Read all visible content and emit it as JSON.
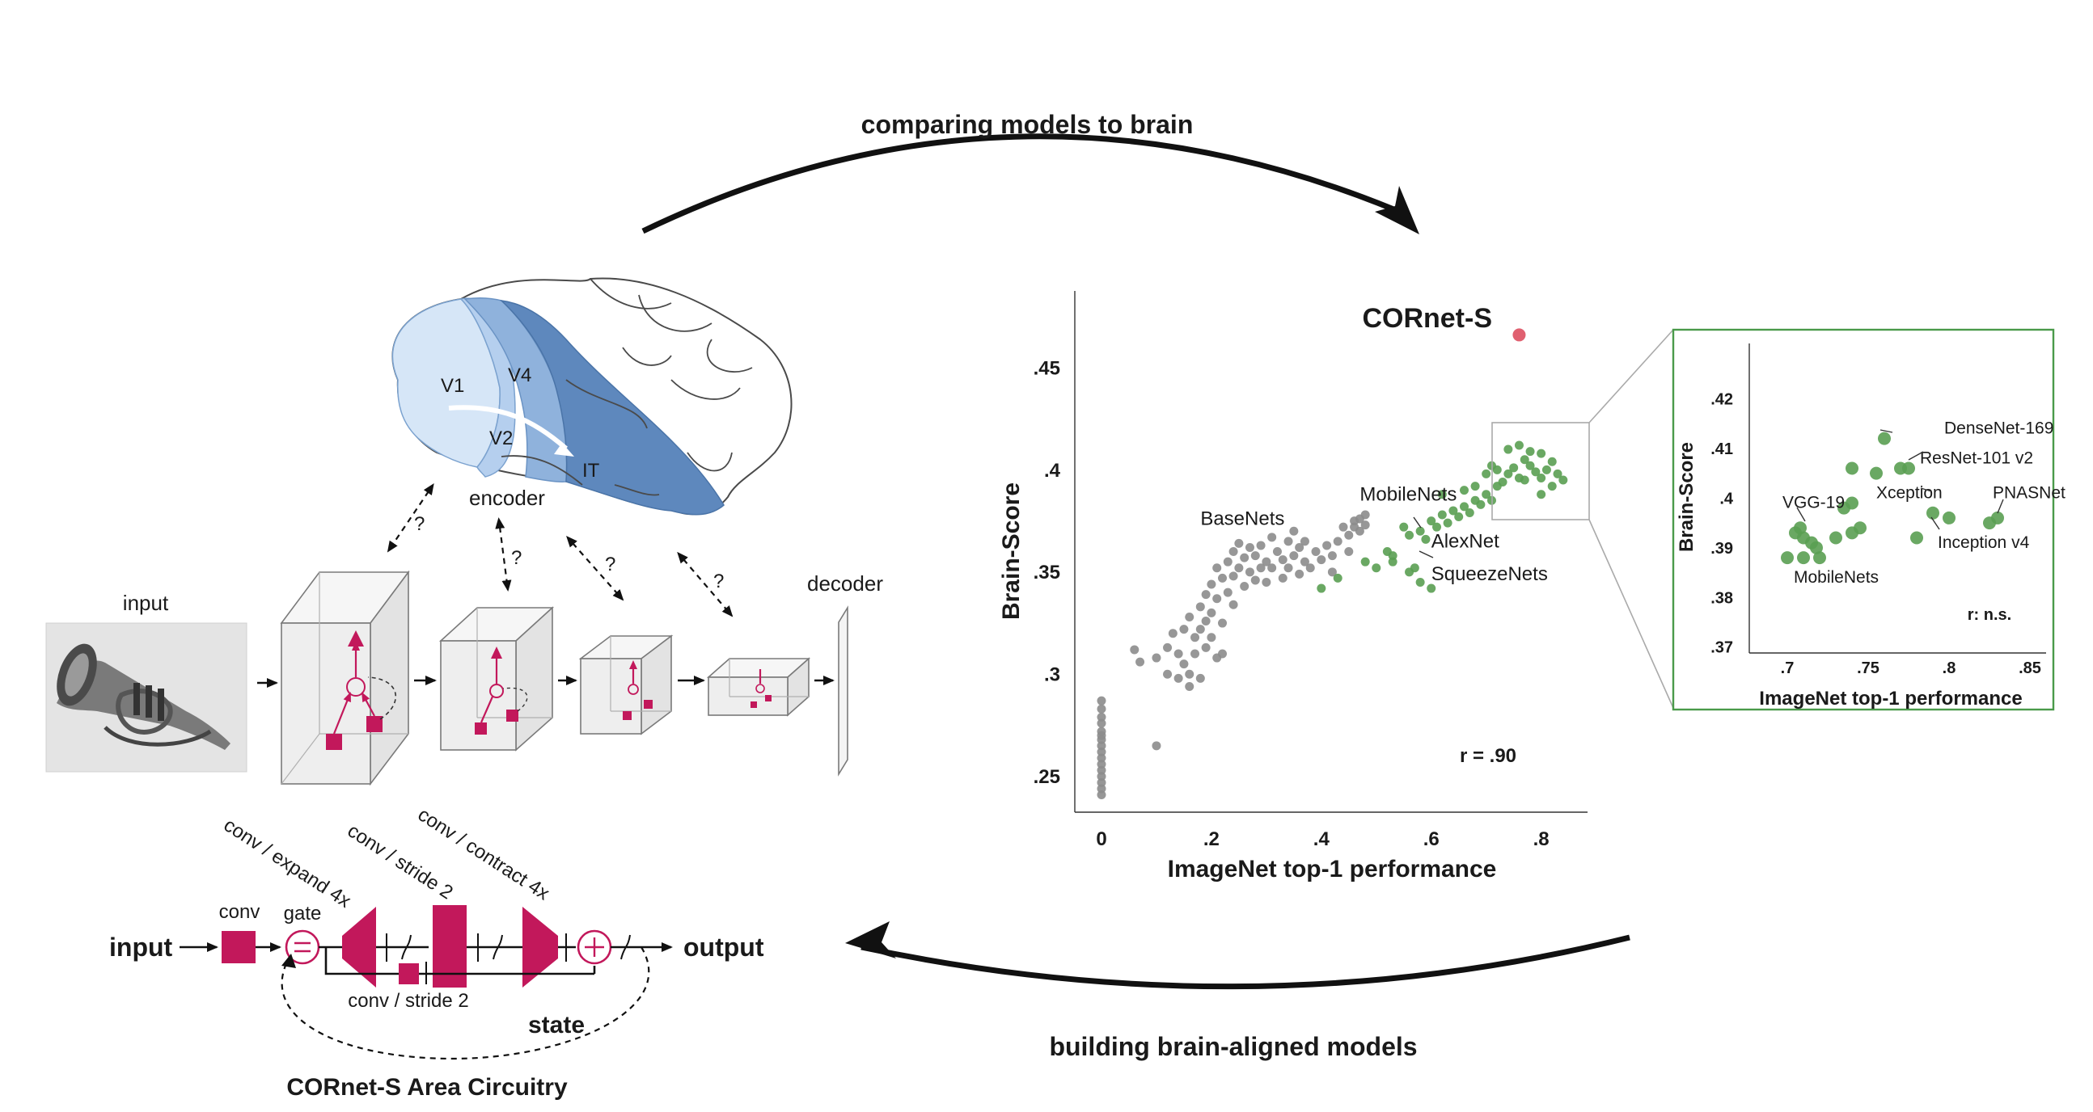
{
  "top_arrow_label": "comparing models to brain",
  "bottom_arrow_label": "building brain-aligned models",
  "brain": {
    "areas": [
      "V1",
      "V2",
      "V4",
      "IT"
    ],
    "encoder_label": "encoder",
    "question_mark": "?",
    "colors": {
      "v1": "#d6e6f7",
      "v2": "#b5cfee",
      "v4": "#8fb2dc",
      "it": "#5e88bd"
    }
  },
  "model": {
    "input_label": "input",
    "decoder_label": "decoder"
  },
  "circuit": {
    "title": "CORnet-S Area Circuitry",
    "input_label": "input",
    "output_label": "output",
    "conv_label": "conv",
    "gate_label": "gate",
    "state_label": "state",
    "stride_bottom_label": "conv / stride 2",
    "rotated_labels": [
      "conv / expand 4x",
      "conv / stride 2",
      "conv / contract 4x"
    ]
  },
  "colors": {
    "pink": "#c2185b",
    "cornet": "#e06070",
    "green": "#5a9e52",
    "gray": "#8c8c8c",
    "inset_border": "#4a9a4a"
  },
  "chart_data": [
    {
      "type": "scatter",
      "title": "",
      "xlabel": "ImageNet top-1 performance",
      "ylabel": "Brain-Score",
      "xlim": [
        0,
        0.88
      ],
      "ylim": [
        0.225,
        0.48
      ],
      "x_ticks": [
        0,
        0.2,
        0.4,
        0.6,
        0.8
      ],
      "x_tick_labels": [
        "0",
        ".2",
        ".4",
        ".6",
        ".8"
      ],
      "y_ticks": [
        0.25,
        0.3,
        0.35,
        0.4,
        0.45
      ],
      "y_tick_labels": [
        ".25",
        ".3",
        ".35",
        ".4",
        ".45"
      ],
      "highlight": {
        "label": "CORnet-S"
      },
      "annotation": "r = .90",
      "labels": [
        {
          "text": "BaseNets",
          "x": 0.18,
          "y": 0.373
        },
        {
          "text": "MobileNets",
          "x": 0.47,
          "y": 0.385
        },
        {
          "text": "AlexNet",
          "x": 0.6,
          "y": 0.362
        },
        {
          "text": "SqueezeNets",
          "x": 0.6,
          "y": 0.346
        }
      ],
      "series": [
        {
          "color": "gray",
          "points": [
            [
              0,
              0.287
            ],
            [
              0,
              0.283
            ],
            [
              0,
              0.279
            ],
            [
              0,
              0.276
            ],
            [
              0,
              0.272
            ],
            [
              0,
              0.268
            ],
            [
              0,
              0.265
            ],
            [
              0,
              0.262
            ],
            [
              0,
              0.259
            ],
            [
              0,
              0.256
            ],
            [
              0,
              0.253
            ],
            [
              0,
              0.25
            ],
            [
              0,
              0.247
            ],
            [
              0,
              0.244
            ],
            [
              0,
              0.241
            ],
            [
              0,
              0.27
            ],
            [
              0.1,
              0.265
            ],
            [
              0.06,
              0.312
            ],
            [
              0.07,
              0.306
            ],
            [
              0.1,
              0.308
            ],
            [
              0.12,
              0.3
            ],
            [
              0.12,
              0.313
            ],
            [
              0.13,
              0.32
            ],
            [
              0.14,
              0.31
            ],
            [
              0.14,
              0.298
            ],
            [
              0.15,
              0.322
            ],
            [
              0.15,
              0.305
            ],
            [
              0.16,
              0.328
            ],
            [
              0.16,
              0.3
            ],
            [
              0.16,
              0.294
            ],
            [
              0.17,
              0.318
            ],
            [
              0.17,
              0.31
            ],
            [
              0.18,
              0.333
            ],
            [
              0.18,
              0.322
            ],
            [
              0.18,
              0.298
            ],
            [
              0.19,
              0.339
            ],
            [
              0.19,
              0.326
            ],
            [
              0.19,
              0.313
            ],
            [
              0.2,
              0.344
            ],
            [
              0.2,
              0.33
            ],
            [
              0.2,
              0.318
            ],
            [
              0.21,
              0.352
            ],
            [
              0.21,
              0.337
            ],
            [
              0.21,
              0.308
            ],
            [
              0.22,
              0.347
            ],
            [
              0.22,
              0.325
            ],
            [
              0.22,
              0.31
            ],
            [
              0.23,
              0.355
            ],
            [
              0.23,
              0.34
            ],
            [
              0.24,
              0.36
            ],
            [
              0.24,
              0.348
            ],
            [
              0.24,
              0.334
            ],
            [
              0.25,
              0.364
            ],
            [
              0.25,
              0.352
            ],
            [
              0.26,
              0.357
            ],
            [
              0.26,
              0.343
            ],
            [
              0.27,
              0.362
            ],
            [
              0.27,
              0.35
            ],
            [
              0.28,
              0.358
            ],
            [
              0.28,
              0.346
            ],
            [
              0.29,
              0.363
            ],
            [
              0.29,
              0.352
            ],
            [
              0.3,
              0.355
            ],
            [
              0.3,
              0.345
            ],
            [
              0.31,
              0.367
            ],
            [
              0.31,
              0.352
            ],
            [
              0.32,
              0.36
            ],
            [
              0.33,
              0.356
            ],
            [
              0.33,
              0.347
            ],
            [
              0.34,
              0.365
            ],
            [
              0.34,
              0.352
            ],
            [
              0.35,
              0.358
            ],
            [
              0.35,
              0.37
            ],
            [
              0.36,
              0.349
            ],
            [
              0.36,
              0.362
            ],
            [
              0.37,
              0.355
            ],
            [
              0.37,
              0.365
            ],
            [
              0.38,
              0.352
            ],
            [
              0.39,
              0.36
            ],
            [
              0.4,
              0.356
            ],
            [
              0.41,
              0.363
            ],
            [
              0.42,
              0.358
            ],
            [
              0.43,
              0.365
            ],
            [
              0.44,
              0.372
            ],
            [
              0.45,
              0.368
            ],
            [
              0.46,
              0.375
            ],
            [
              0.46,
              0.372
            ],
            [
              0.47,
              0.376
            ],
            [
              0.47,
              0.37
            ],
            [
              0.48,
              0.378
            ],
            [
              0.48,
              0.373
            ],
            [
              0.45,
              0.36
            ],
            [
              0.42,
              0.35
            ]
          ]
        },
        {
          "color": "green",
          "points": [
            [
              0.4,
              0.342
            ],
            [
              0.43,
              0.347
            ],
            [
              0.48,
              0.355
            ],
            [
              0.5,
              0.352
            ],
            [
              0.52,
              0.36
            ],
            [
              0.53,
              0.355
            ],
            [
              0.55,
              0.372
            ],
            [
              0.56,
              0.368
            ],
            [
              0.58,
              0.37
            ],
            [
              0.59,
              0.366
            ],
            [
              0.6,
              0.375
            ],
            [
              0.61,
              0.372
            ],
            [
              0.62,
              0.378
            ],
            [
              0.63,
              0.374
            ],
            [
              0.64,
              0.38
            ],
            [
              0.65,
              0.377
            ],
            [
              0.66,
              0.382
            ],
            [
              0.67,
              0.379
            ],
            [
              0.68,
              0.385
            ],
            [
              0.69,
              0.383
            ],
            [
              0.7,
              0.388
            ],
            [
              0.71,
              0.385
            ],
            [
              0.72,
              0.392
            ],
            [
              0.73,
              0.394
            ],
            [
              0.74,
              0.398
            ],
            [
              0.75,
              0.401
            ],
            [
              0.76,
              0.396
            ],
            [
              0.77,
              0.405
            ],
            [
              0.78,
              0.402
            ],
            [
              0.79,
              0.399
            ],
            [
              0.8,
              0.408
            ],
            [
              0.8,
              0.396
            ],
            [
              0.81,
              0.4
            ],
            [
              0.82,
              0.404
            ],
            [
              0.83,
              0.398
            ],
            [
              0.84,
              0.395
            ],
            [
              0.74,
              0.41
            ],
            [
              0.76,
              0.412
            ],
            [
              0.78,
              0.409
            ],
            [
              0.7,
              0.398
            ],
            [
              0.72,
              0.4
            ],
            [
              0.68,
              0.392
            ],
            [
              0.57,
              0.352
            ],
            [
              0.58,
              0.345
            ],
            [
              0.6,
              0.342
            ],
            [
              0.56,
              0.35
            ],
            [
              0.53,
              0.358
            ],
            [
              0.62,
              0.388
            ],
            [
              0.66,
              0.39
            ],
            [
              0.71,
              0.402
            ],
            [
              0.77,
              0.395
            ],
            [
              0.82,
              0.392
            ],
            [
              0.8,
              0.388
            ]
          ]
        },
        {
          "color": "cornet",
          "points": [
            [
              0.76,
              0.466
            ]
          ]
        }
      ]
    },
    {
      "type": "scatter",
      "title": "",
      "xlabel": "ImageNet top-1 performance",
      "ylabel": "Brain-Score",
      "xlim": [
        0.68,
        0.86
      ],
      "ylim": [
        0.368,
        0.43
      ],
      "x_ticks": [
        0.7,
        0.75,
        0.8,
        0.85
      ],
      "x_tick_labels": [
        ".7",
        ".75",
        ".8",
        ".85"
      ],
      "y_ticks": [
        0.37,
        0.38,
        0.39,
        0.4,
        0.41,
        0.42
      ],
      "y_tick_labels": [
        ".37",
        ".38",
        ".39",
        ".4",
        ".41",
        ".42"
      ],
      "annotation": "r: n.s.",
      "labels": [
        {
          "text": "DenseNet-169",
          "x": 0.797,
          "y": 0.413
        },
        {
          "text": "ResNet-101 v2",
          "x": 0.782,
          "y": 0.407
        },
        {
          "text": "Xception",
          "x": 0.755,
          "y": 0.4
        },
        {
          "text": "VGG-19",
          "x": 0.697,
          "y": 0.398
        },
        {
          "text": "PNASNet",
          "x": 0.827,
          "y": 0.4
        },
        {
          "text": "Inception v4",
          "x": 0.793,
          "y": 0.39
        },
        {
          "text": "MobileNets",
          "x": 0.704,
          "y": 0.383
        }
      ],
      "series": [
        {
          "color": "green",
          "points": [
            [
              0.705,
              0.393
            ],
            [
              0.71,
              0.392
            ],
            [
              0.715,
              0.391
            ],
            [
              0.7,
              0.388
            ],
            [
              0.71,
              0.388
            ],
            [
              0.72,
              0.388
            ],
            [
              0.708,
              0.394
            ],
            [
              0.73,
              0.392
            ],
            [
              0.74,
              0.393
            ],
            [
              0.745,
              0.394
            ],
            [
              0.74,
              0.399
            ],
            [
              0.74,
              0.406
            ],
            [
              0.755,
              0.405
            ],
            [
              0.77,
              0.406
            ],
            [
              0.775,
              0.406
            ],
            [
              0.76,
              0.412
            ],
            [
              0.78,
              0.392
            ],
            [
              0.79,
              0.397
            ],
            [
              0.8,
              0.396
            ],
            [
              0.83,
              0.396
            ],
            [
              0.825,
              0.395
            ],
            [
              0.735,
              0.398
            ],
            [
              0.718,
              0.39
            ]
          ]
        }
      ]
    }
  ]
}
